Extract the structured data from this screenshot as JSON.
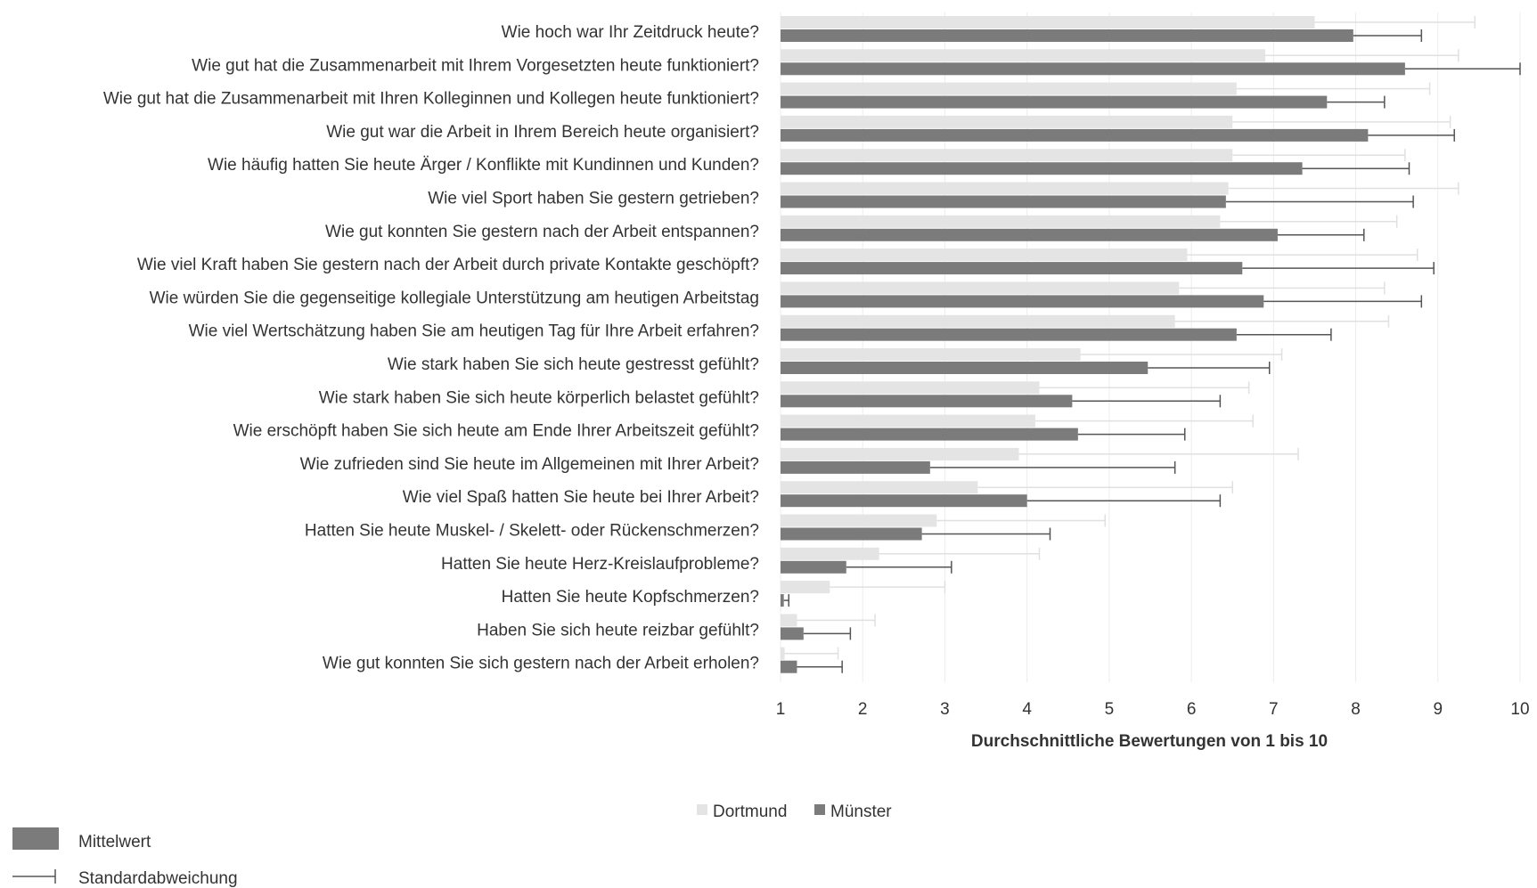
{
  "chart_data": {
    "type": "bar",
    "orientation": "horizontal",
    "xlabel": "Durchschnittliche Bewertungen von 1 bis 10",
    "xlim": [
      1,
      10
    ],
    "xticks": [
      "1",
      "2",
      "3",
      "4",
      "5",
      "6",
      "7",
      "8",
      "9",
      "10"
    ],
    "grid": true,
    "colors": {
      "Dortmund": "#e4e4e4",
      "Münster": "#7b7b7b",
      "error_dortmund": "#e0e0e0",
      "error_muenster": "#555555",
      "grid": "#ececec"
    },
    "categories": [
      "Wie hoch war Ihr Zeitdruck heute?",
      "Wie gut hat die Zusammenarbeit mit Ihrem Vorgesetzten heute funktioniert?",
      "Wie gut hat die Zusammenarbeit mit Ihren Kolleginnen und Kollegen heute funktioniert?",
      "Wie gut war die Arbeit in Ihrem Bereich heute organisiert?",
      "Wie häufig hatten Sie heute Ärger / Konflikte mit Kundinnen und Kunden?",
      "Wie viel Sport haben Sie gestern getrieben?",
      "Wie gut konnten Sie gestern nach der Arbeit entspannen?",
      "Wie viel Kraft haben Sie gestern nach der Arbeit durch private Kontakte geschöpft?",
      "Wie würden Sie die gegenseitige kollegiale Unterstützung am heutigen Arbeitstag",
      "Wie viel Wertschätzung haben Sie am heutigen Tag für Ihre Arbeit erfahren?",
      "Wie stark haben Sie sich heute gestresst gefühlt?",
      "Wie stark haben Sie sich heute körperlich belastet gefühlt?",
      "Wie erschöpft haben Sie sich heute am Ende Ihrer Arbeitszeit gefühlt?",
      "Wie zufrieden sind Sie heute im Allgemeinen mit Ihrer Arbeit?",
      "Wie viel Spaß hatten Sie heute bei Ihrer Arbeit?",
      "Hatten Sie heute Muskel- / Skelett- oder Rückenschmerzen?",
      "Hatten Sie heute Herz-Kreislaufprobleme?",
      "Hatten Sie heute Kopfschmerzen?",
      "Haben Sie sich heute reizbar gefühlt?",
      "Wie gut konnten Sie sich gestern nach der Arbeit erholen?"
    ],
    "series": [
      {
        "name": "Dortmund",
        "values": [
          7.5,
          6.9,
          6.55,
          6.5,
          6.5,
          6.45,
          6.35,
          5.95,
          5.85,
          5.8,
          4.65,
          4.15,
          4.1,
          3.9,
          3.4,
          2.9,
          2.2,
          1.6,
          1.2,
          1.05
        ],
        "error_upper": [
          9.45,
          9.25,
          8.9,
          9.15,
          8.6,
          9.25,
          8.5,
          8.75,
          8.35,
          8.4,
          7.1,
          6.7,
          6.75,
          7.3,
          6.5,
          4.95,
          4.15,
          3.0,
          2.15,
          1.7
        ]
      },
      {
        "name": "Münster",
        "values": [
          7.97,
          8.6,
          7.65,
          8.15,
          7.35,
          6.42,
          7.05,
          6.62,
          6.88,
          6.55,
          5.47,
          4.55,
          4.62,
          2.82,
          4.0,
          2.72,
          1.8,
          1.04,
          1.28,
          1.2
        ],
        "error_upper": [
          8.8,
          10.0,
          8.35,
          9.2,
          8.65,
          8.7,
          8.1,
          8.95,
          8.8,
          7.7,
          6.95,
          6.35,
          5.92,
          5.8,
          6.35,
          4.28,
          3.08,
          1.1,
          1.85,
          1.75
        ]
      }
    ],
    "legend": {
      "placement": "bottom",
      "entries": [
        "Dortmund",
        "Münster"
      ]
    },
    "key": {
      "mean_label": "Mittelwert",
      "sd_label": "Standardabweichung"
    }
  }
}
